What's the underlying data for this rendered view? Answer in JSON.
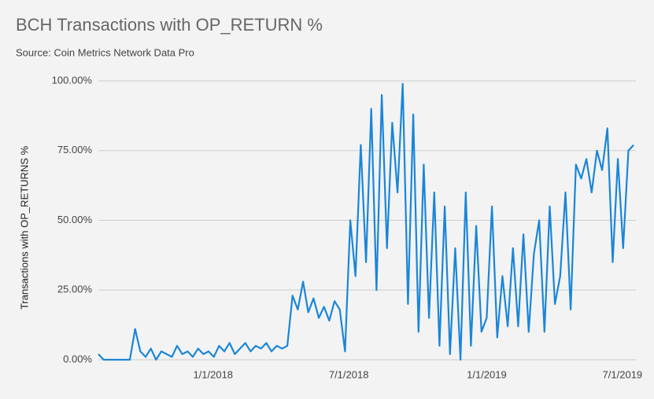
{
  "chart_data": {
    "type": "line",
    "title": "BCH Transactions with OP_RETURN %",
    "subtitle": "Source: Coin Metrics Network Data Pro",
    "y_label": "Transactions with OP_RETURNS %",
    "color": "#1a86d8",
    "grid": true,
    "x": [
      "2017-08-01",
      "2017-08-08",
      "2017-08-15",
      "2017-08-22",
      "2017-08-29",
      "2017-09-05",
      "2017-09-12",
      "2017-09-19",
      "2017-09-26",
      "2017-10-03",
      "2017-10-10",
      "2017-10-17",
      "2017-10-24",
      "2017-10-31",
      "2017-11-07",
      "2017-11-14",
      "2017-11-21",
      "2017-11-28",
      "2017-12-05",
      "2017-12-12",
      "2017-12-19",
      "2017-12-26",
      "2018-01-02",
      "2018-01-09",
      "2018-01-16",
      "2018-01-23",
      "2018-01-30",
      "2018-02-06",
      "2018-02-13",
      "2018-02-20",
      "2018-02-27",
      "2018-03-06",
      "2018-03-13",
      "2018-03-20",
      "2018-03-27",
      "2018-04-03",
      "2018-04-10",
      "2018-04-17",
      "2018-04-24",
      "2018-05-01",
      "2018-05-08",
      "2018-05-15",
      "2018-05-22",
      "2018-05-29",
      "2018-06-05",
      "2018-06-12",
      "2018-06-19",
      "2018-06-26",
      "2018-07-03",
      "2018-07-10",
      "2018-07-17",
      "2018-07-24",
      "2018-07-31",
      "2018-08-07",
      "2018-08-14",
      "2018-08-21",
      "2018-08-28",
      "2018-09-04",
      "2018-09-11",
      "2018-09-18",
      "2018-09-25",
      "2018-10-02",
      "2018-10-09",
      "2018-10-16",
      "2018-10-23",
      "2018-10-30",
      "2018-11-06",
      "2018-11-13",
      "2018-11-20",
      "2018-11-27",
      "2018-12-04",
      "2018-12-11",
      "2018-12-18",
      "2018-12-25",
      "2019-01-01",
      "2019-01-08",
      "2019-01-15",
      "2019-01-22",
      "2019-01-29",
      "2019-02-05",
      "2019-02-12",
      "2019-02-19",
      "2019-02-26",
      "2019-03-05",
      "2019-03-12",
      "2019-03-19",
      "2019-03-26",
      "2019-04-02",
      "2019-04-09",
      "2019-04-16",
      "2019-04-23",
      "2019-04-30",
      "2019-05-07",
      "2019-05-14",
      "2019-05-21",
      "2019-05-28",
      "2019-06-04",
      "2019-06-11",
      "2019-06-18",
      "2019-06-25",
      "2019-07-02",
      "2019-07-09",
      "2019-07-16"
    ],
    "values": [
      2,
      0,
      0,
      0,
      0,
      0,
      0,
      11,
      3,
      1,
      4,
      0,
      3,
      2,
      1,
      5,
      2,
      3,
      1,
      4,
      2,
      3,
      1,
      5,
      3,
      6,
      2,
      4,
      6,
      3,
      5,
      4,
      6,
      3,
      5,
      4,
      5,
      23,
      18,
      28,
      17,
      22,
      15,
      19,
      14,
      21,
      18,
      3,
      50,
      30,
      77,
      35,
      90,
      25,
      95,
      40,
      85,
      60,
      99,
      20,
      88,
      10,
      70,
      15,
      60,
      5,
      55,
      2,
      40,
      0,
      60,
      5,
      48,
      10,
      15,
      55,
      8,
      30,
      12,
      40,
      12,
      45,
      10,
      38,
      50,
      10,
      55,
      20,
      30,
      60,
      18,
      70,
      65,
      72,
      60,
      75,
      68,
      83,
      35,
      72,
      40,
      75,
      77
    ],
    "xlim": [
      "2017-08-01",
      "2019-07-19"
    ],
    "xticks": [
      {
        "value": "2018-01-01",
        "label": "1/1/2018"
      },
      {
        "value": "2018-07-01",
        "label": "7/1/2018"
      },
      {
        "value": "2019-01-01",
        "label": "1/1/2019"
      },
      {
        "value": "2019-07-01",
        "label": "7/1/2019"
      }
    ],
    "ylim": [
      0,
      100
    ],
    "yticks": [
      {
        "value": 0,
        "label": "0.00%"
      },
      {
        "value": 25,
        "label": "25.00%"
      },
      {
        "value": 50,
        "label": "50.00%"
      },
      {
        "value": 75,
        "label": "75.00%"
      },
      {
        "value": 100,
        "label": "100.00%"
      }
    ]
  }
}
